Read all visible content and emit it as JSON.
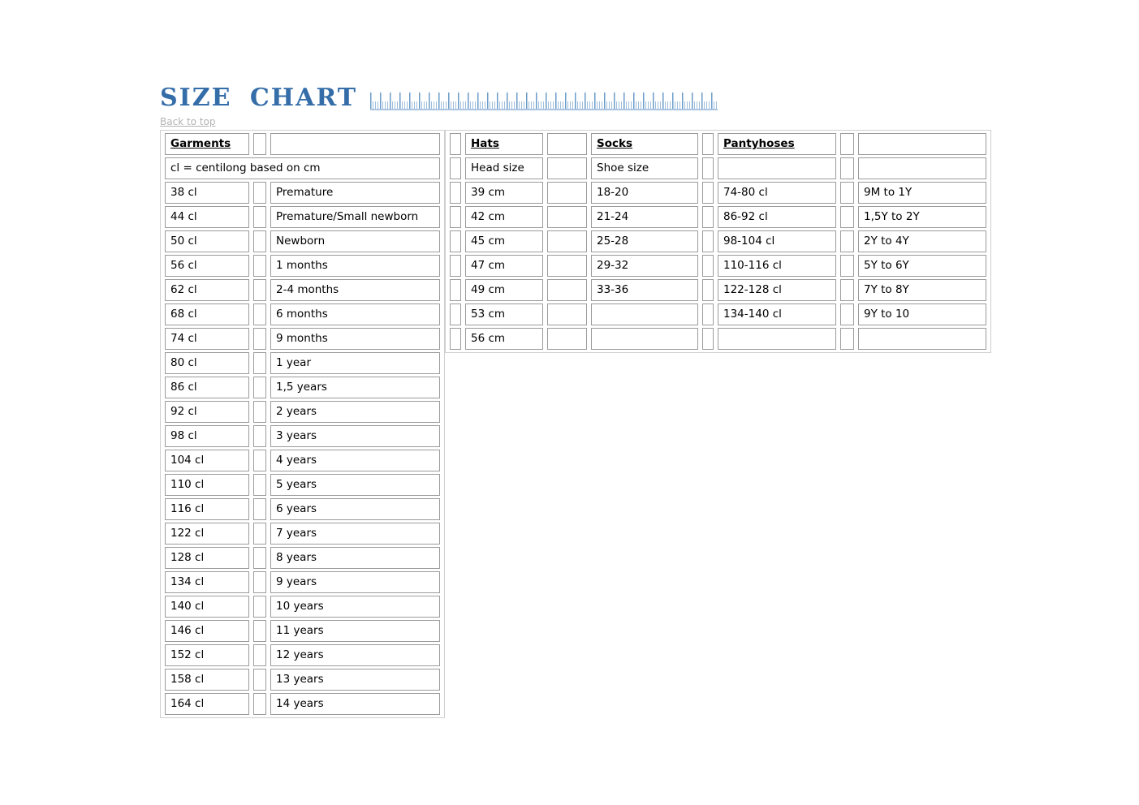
{
  "page": {
    "title": "SIZE CHART",
    "back_to_top": "Back to top"
  },
  "colors": {
    "title_blue": "#346da8",
    "ruler_blue": "#6b9cc9",
    "ruler_baseline": "#a9c4e0",
    "table_border_gray": "#9b9b9b",
    "link_gray": "#b4b4b4"
  },
  "table": {
    "garments": {
      "header": "Garments",
      "note": "cl = centilong based on cm",
      "rows": [
        {
          "size": "38 cl",
          "age": "Premature"
        },
        {
          "size": "44 cl",
          "age": "Premature/Small newborn"
        },
        {
          "size": "50 cl",
          "age": "Newborn"
        },
        {
          "size": "56 cl",
          "age": "1 months"
        },
        {
          "size": "62 cl",
          "age": "2-4 months"
        },
        {
          "size": "68 cl",
          "age": "6 months"
        },
        {
          "size": "74 cl",
          "age": "9 months"
        },
        {
          "size": "80 cl",
          "age": "1 year"
        },
        {
          "size": "86 cl",
          "age": "1,5 years"
        },
        {
          "size": "92 cl",
          "age": "2 years"
        },
        {
          "size": "98 cl",
          "age": "3 years"
        },
        {
          "size": "104 cl",
          "age": "4 years"
        },
        {
          "size": "110 cl",
          "age": "5 years"
        },
        {
          "size": "116 cl",
          "age": "6 years"
        },
        {
          "size": "122 cl",
          "age": "7 years"
        },
        {
          "size": "128 cl",
          "age": "8 years"
        },
        {
          "size": "134 cl",
          "age": "9 years"
        },
        {
          "size": "140 cl",
          "age": "10 years"
        },
        {
          "size": "146 cl",
          "age": "11 years"
        },
        {
          "size": "152 cl",
          "age": "12 years"
        },
        {
          "size": "158 cl",
          "age": "13 years"
        },
        {
          "size": "164 cl",
          "age": "14 years"
        }
      ]
    },
    "hats": {
      "header": "Hats",
      "subheader": "Head size",
      "values": [
        "39 cm",
        "42 cm",
        "45 cm",
        "47 cm",
        "49 cm",
        "53 cm",
        "56 cm"
      ]
    },
    "socks": {
      "header": "Socks",
      "subheader": "Shoe size",
      "values": [
        "18-20",
        "21-24",
        "25-28",
        "29-32",
        "33-36",
        "",
        ""
      ]
    },
    "pantyhoses": {
      "header": "Pantyhoses",
      "rows": [
        {
          "size": "74-80 cl",
          "age": "9M to 1Y"
        },
        {
          "size": "86-92 cl",
          "age": "1,5Y to 2Y"
        },
        {
          "size": "98-104 cl",
          "age": "2Y to 4Y"
        },
        {
          "size": "110-116 cl",
          "age": "5Y to 6Y"
        },
        {
          "size": "122-128 cl",
          "age": "7Y to 8Y"
        },
        {
          "size": "134-140 cl",
          "age": "9Y to 10"
        },
        {
          "size": "",
          "age": ""
        }
      ]
    }
  }
}
